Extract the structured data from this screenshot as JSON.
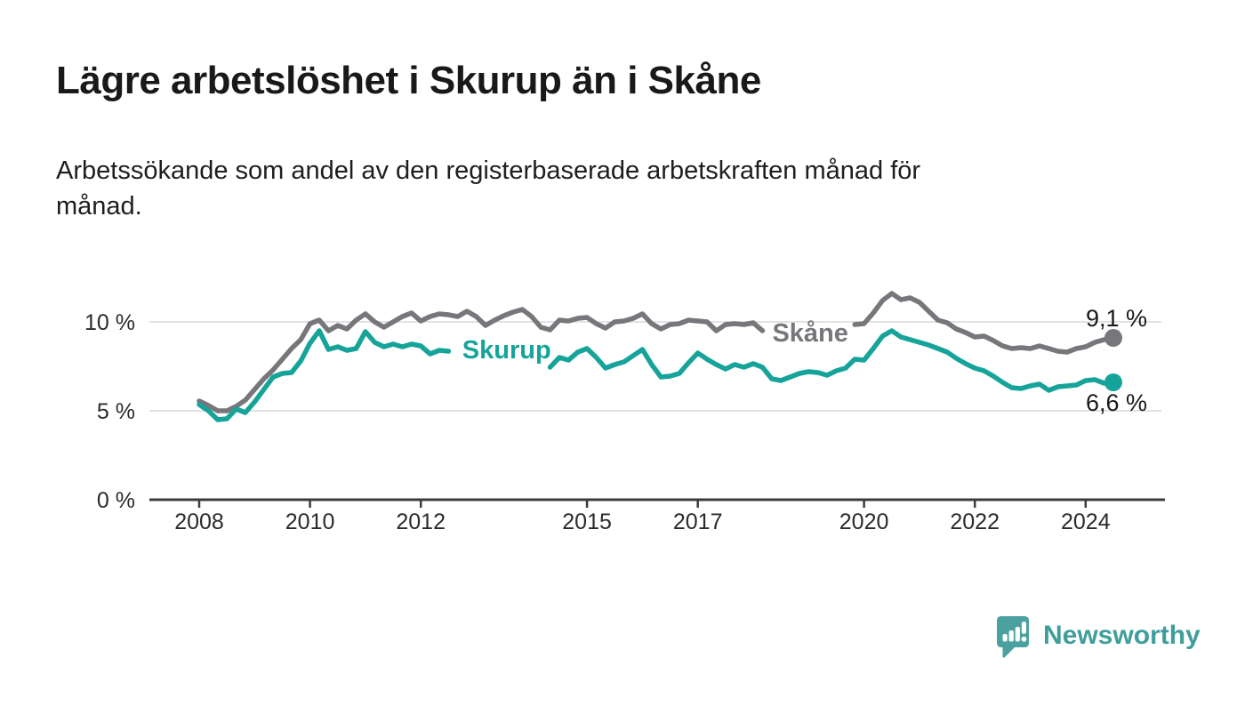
{
  "title": "Lägre arbetslöshet i Skurup än i Skåne",
  "subtitle": "Arbetssökande som andel av den registerbaserade arbetskraften månad för månad.",
  "footer": {
    "brand": "Newsworthy",
    "brand_color": "#3f9e9c",
    "logo_bg_color": "#4aa1a0",
    "logo_icon": "newsworthy-speech-bubble-bar-chart-icon"
  },
  "chart_data": {
    "type": "line",
    "title": "Lägre arbetslöshet i Skurup än i Skåne",
    "xlabel": "",
    "ylabel": "",
    "unit": "%",
    "grid": "horizontal",
    "grid_color": "#d8d8d8",
    "axis_color": "#3c3c3c",
    "tick_label_color": "#2b2b2b",
    "annotation_color": "#191919",
    "x_domain": [
      2008.0,
      2024.5
    ],
    "x_step": 0.1666667,
    "ylim": [
      0,
      12
    ],
    "y_ticks": [
      {
        "value": 0,
        "label": "0 %"
      },
      {
        "value": 5,
        "label": "5 %"
      },
      {
        "value": 10,
        "label": "10 %"
      }
    ],
    "x_ticks": [
      {
        "value": 2008,
        "label": "2008"
      },
      {
        "value": 2010,
        "label": "2010"
      },
      {
        "value": 2012,
        "label": "2012"
      },
      {
        "value": 2015,
        "label": "2015"
      },
      {
        "value": 2017,
        "label": "2017"
      },
      {
        "value": 2020,
        "label": "2020"
      },
      {
        "value": 2022,
        "label": "2022"
      },
      {
        "value": 2024,
        "label": "2024"
      }
    ],
    "series": [
      {
        "name": "Skåne",
        "color": "#76767b",
        "end_label": "9,1 %",
        "end_value": 9.1,
        "name_label": {
          "x": 2019.03,
          "y": 9.4
        },
        "label_gap": [
          2018.3,
          2019.72
        ],
        "values": [
          5.55,
          5.3,
          5.0,
          5.0,
          5.25,
          5.6,
          6.2,
          6.8,
          7.3,
          7.9,
          8.5,
          9.0,
          9.9,
          10.1,
          9.5,
          9.8,
          9.6,
          10.1,
          10.45,
          10.0,
          9.7,
          10.0,
          10.3,
          10.5,
          10.05,
          10.3,
          10.45,
          10.4,
          10.3,
          10.6,
          10.3,
          9.8,
          10.1,
          10.35,
          10.55,
          10.7,
          10.3,
          9.7,
          9.55,
          10.1,
          10.05,
          10.2,
          10.25,
          9.9,
          9.65,
          10.0,
          10.05,
          10.2,
          10.45,
          9.9,
          9.6,
          9.85,
          9.9,
          10.1,
          10.05,
          10.0,
          9.5,
          9.85,
          9.9,
          9.85,
          9.95,
          9.5,
          9.7,
          9.6,
          9.65,
          9.7,
          9.6,
          9.55,
          9.6,
          9.7,
          9.8,
          9.85,
          9.9,
          10.5,
          11.2,
          11.6,
          11.25,
          11.35,
          11.1,
          10.6,
          10.1,
          9.95,
          9.6,
          9.4,
          9.15,
          9.2,
          8.95,
          8.65,
          8.5,
          8.55,
          8.5,
          8.65,
          8.5,
          8.35,
          8.3,
          8.5,
          8.6,
          8.85,
          9.0,
          9.1
        ]
      },
      {
        "name": "Skurup",
        "color": "#16a49a",
        "end_label": "6,6 %",
        "end_value": 6.6,
        "name_label": {
          "x": 2013.55,
          "y": 8.45
        },
        "label_gap": [
          2012.55,
          2014.28
        ],
        "values": [
          5.35,
          5.0,
          4.5,
          4.55,
          5.1,
          4.9,
          5.5,
          6.2,
          6.9,
          7.1,
          7.15,
          7.8,
          8.8,
          9.5,
          8.45,
          8.6,
          8.4,
          8.5,
          9.45,
          8.85,
          8.6,
          8.75,
          8.6,
          8.75,
          8.65,
          8.2,
          8.4,
          8.35,
          8.3,
          8.3,
          8.25,
          8.2,
          8.25,
          8.2,
          8.1,
          7.9,
          7.7,
          7.6,
          7.45,
          8.0,
          7.85,
          8.3,
          8.5,
          8.0,
          7.4,
          7.6,
          7.75,
          8.1,
          8.45,
          7.6,
          6.9,
          6.95,
          7.1,
          7.7,
          8.25,
          7.9,
          7.6,
          7.35,
          7.6,
          7.45,
          7.65,
          7.45,
          6.8,
          6.7,
          6.9,
          7.1,
          7.2,
          7.15,
          7.0,
          7.25,
          7.4,
          7.9,
          7.85,
          8.5,
          9.2,
          9.5,
          9.15,
          9.0,
          8.85,
          8.7,
          8.5,
          8.3,
          7.95,
          7.65,
          7.4,
          7.25,
          6.95,
          6.6,
          6.3,
          6.25,
          6.4,
          6.5,
          6.15,
          6.35,
          6.4,
          6.45,
          6.7,
          6.75,
          6.55,
          6.6
        ]
      }
    ]
  }
}
